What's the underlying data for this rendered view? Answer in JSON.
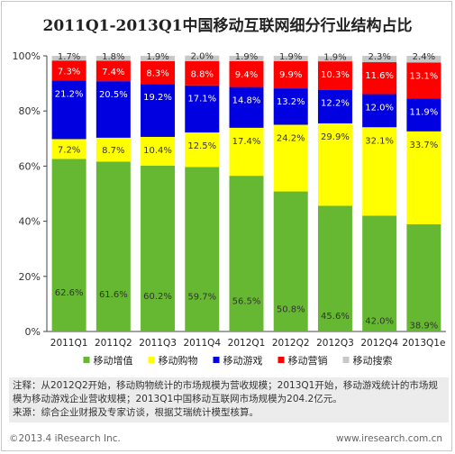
{
  "title": "2011Q1-2013Q1中国移动互联网细分行业结构占比",
  "chart_data": {
    "type": "bar",
    "stacked": true,
    "categories": [
      "2011Q1",
      "2011Q2",
      "2011Q3",
      "2011Q4",
      "2012Q1",
      "2012Q2",
      "2012Q3",
      "2012Q4",
      "2013Q1e"
    ],
    "series": [
      {
        "name": "移动增值",
        "color": "#66b832",
        "values": [
          62.6,
          61.6,
          60.2,
          59.7,
          56.5,
          50.8,
          45.6,
          42.0,
          38.9
        ]
      },
      {
        "name": "移动购物",
        "color": "#ffff00",
        "values": [
          7.2,
          8.7,
          10.4,
          12.5,
          17.4,
          24.2,
          29.9,
          32.1,
          33.7
        ]
      },
      {
        "name": "移动游戏",
        "color": "#0000e0",
        "values": [
          21.2,
          20.5,
          19.2,
          17.1,
          14.8,
          13.2,
          12.2,
          12.0,
          11.9
        ]
      },
      {
        "name": "移动营销",
        "color": "#ff0000",
        "values": [
          7.3,
          7.4,
          8.3,
          8.8,
          9.4,
          9.9,
          10.3,
          11.6,
          13.1
        ]
      },
      {
        "name": "移动搜索",
        "color": "#c8c8c8",
        "values": [
          1.7,
          1.8,
          1.9,
          2.0,
          1.9,
          1.9,
          1.9,
          2.3,
          2.4
        ]
      }
    ],
    "ylim": [
      0,
      100
    ],
    "y_ticks": [
      "0%",
      "20%",
      "40%",
      "60%",
      "80%",
      "100%"
    ],
    "legend_position": "bottom",
    "grid": false
  },
  "notes": [
    "注释：从2012Q2开始，移动购物统计的市场规模为营收规模；2013Q1开始，移动游戏统计的市场规模为移动游戏企业营收规模；2013Q1中国移动互联网市场规模为204.2亿元。",
    "来源：综合企业财报及专家访谈，根据艾瑞统计模型核算。"
  ],
  "footer": {
    "copyright": "©2013.4 iResearch Inc.",
    "url": "www.iresearch.com.cn"
  }
}
